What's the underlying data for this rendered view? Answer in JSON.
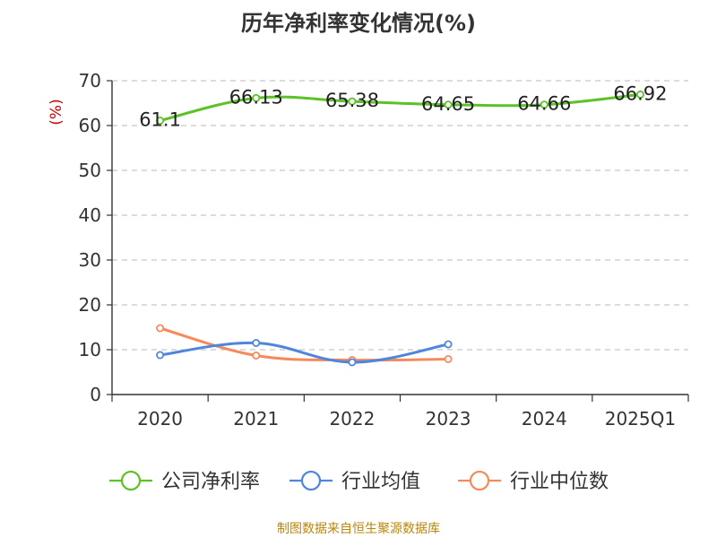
{
  "source_text": "制图数据来自恒生聚源数据库",
  "chart_data": {
    "type": "line",
    "title": "历年净利率变化情况(%)",
    "ylabel": "(%)",
    "xlabel": "",
    "categories": [
      "2020",
      "2021",
      "2022",
      "2023",
      "2024",
      "2025Q1"
    ],
    "ylim": [
      0,
      70
    ],
    "yticks": [
      0,
      10,
      20,
      30,
      40,
      50,
      60,
      70
    ],
    "grid": true,
    "legend_position": "bottom",
    "series": [
      {
        "name": "公司净利率",
        "color": "#5cc228",
        "show_labels": true,
        "values": [
          61.1,
          66.13,
          65.38,
          64.65,
          64.66,
          66.92
        ],
        "labels": [
          "61.1",
          "66.13",
          "65.38",
          "64.65",
          "64.66",
          "66.92"
        ]
      },
      {
        "name": "行业均值",
        "color": "#4f86dc",
        "show_labels": false,
        "values": [
          8.8,
          11.5,
          7.2,
          11.2,
          null,
          null
        ]
      },
      {
        "name": "行业中位数",
        "color": "#f78a5a",
        "show_labels": false,
        "values": [
          14.8,
          8.7,
          7.7,
          7.9,
          null,
          null
        ]
      }
    ]
  }
}
